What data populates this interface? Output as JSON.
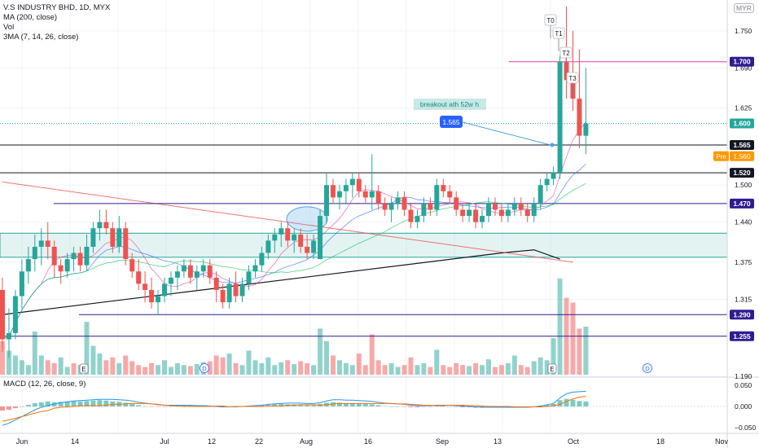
{
  "header": {
    "symbol_line": "V.S INDUSTRY BHD, 1D, MYX",
    "indicators": [
      "MA (200, close)",
      "Vol",
      "3MA (7, 14, 26, close)"
    ],
    "currency": "MYR"
  },
  "macd": {
    "label": "MACD (12, 26, close, 9)",
    "axis_ticks": [
      "0.050",
      "0.000",
      "−0.050"
    ]
  },
  "annotations": {
    "breakout_text": "breakout ath 52w h",
    "callout_value": "1.565",
    "targets": [
      "T0",
      "T1",
      "T2",
      "T3"
    ],
    "earnings_markers": [
      "E",
      "E"
    ],
    "dividend_markers": [
      "D",
      "D"
    ]
  },
  "price_axis": {
    "ticks": [
      "1.750",
      "1.690",
      "1.625",
      "1.500",
      "1.440",
      "1.375",
      "1.315",
      "1.190"
    ],
    "level_badges": [
      {
        "value": "1.700",
        "bg": "#311b92",
        "fg": "#ffffff"
      },
      {
        "value": "1.600",
        "bg": "#26a69a",
        "fg": "#ffffff"
      },
      {
        "value": "1.565",
        "bg": "#131722",
        "fg": "#ffffff"
      },
      {
        "value": "1.520",
        "bg": "#131722",
        "fg": "#ffffff"
      },
      {
        "value": "1.470",
        "bg": "#311b92",
        "fg": "#ffffff"
      },
      {
        "value": "1.290",
        "bg": "#311b92",
        "fg": "#ffffff"
      },
      {
        "value": "1.255",
        "bg": "#311b92",
        "fg": "#ffffff"
      }
    ],
    "pre_label": "Pre",
    "pre_value": "1.560"
  },
  "time_axis": {
    "ticks": [
      "Jun",
      "14",
      "Jul",
      "12",
      "22",
      "Aug",
      "16",
      "Sep",
      "13",
      "Oct",
      "18",
      "Nov"
    ]
  },
  "colors": {
    "up": "#26a69a",
    "down": "#ef5350",
    "purple": "#311b92",
    "black": "#131722",
    "pink": "#e91e63",
    "zone": "#26a69a"
  },
  "chart_data": {
    "type": "candlestick",
    "title": "V.S INDUSTRY BHD, 1D, MYX",
    "x_range": [
      "Jun",
      "Nov"
    ],
    "ylim": [
      1.19,
      1.8
    ],
    "candles": [
      [
        1.33,
        1.35,
        1.23,
        1.25
      ],
      [
        1.25,
        1.3,
        1.22,
        1.26
      ],
      [
        1.26,
        1.33,
        1.25,
        1.32
      ],
      [
        1.32,
        1.38,
        1.3,
        1.36
      ],
      [
        1.36,
        1.4,
        1.34,
        1.38
      ],
      [
        1.38,
        1.42,
        1.36,
        1.4
      ],
      [
        1.4,
        1.43,
        1.37,
        1.41
      ],
      [
        1.41,
        1.44,
        1.38,
        1.4
      ],
      [
        1.4,
        1.41,
        1.35,
        1.37
      ],
      [
        1.37,
        1.38,
        1.34,
        1.36
      ],
      [
        1.36,
        1.39,
        1.35,
        1.38
      ],
      [
        1.38,
        1.4,
        1.36,
        1.39
      ],
      [
        1.39,
        1.4,
        1.36,
        1.37
      ],
      [
        1.37,
        1.42,
        1.36,
        1.4
      ],
      [
        1.4,
        1.44,
        1.39,
        1.43
      ],
      [
        1.43,
        1.46,
        1.41,
        1.44
      ],
      [
        1.44,
        1.46,
        1.42,
        1.43
      ],
      [
        1.43,
        1.44,
        1.39,
        1.4
      ],
      [
        1.4,
        1.45,
        1.39,
        1.43
      ],
      [
        1.43,
        1.44,
        1.37,
        1.38
      ],
      [
        1.38,
        1.39,
        1.35,
        1.36
      ],
      [
        1.36,
        1.38,
        1.33,
        1.34
      ],
      [
        1.34,
        1.36,
        1.31,
        1.33
      ],
      [
        1.33,
        1.35,
        1.3,
        1.31
      ],
      [
        1.31,
        1.33,
        1.29,
        1.32
      ],
      [
        1.32,
        1.35,
        1.31,
        1.34
      ],
      [
        1.34,
        1.36,
        1.32,
        1.35
      ],
      [
        1.35,
        1.37,
        1.33,
        1.36
      ],
      [
        1.36,
        1.38,
        1.35,
        1.37
      ],
      [
        1.37,
        1.38,
        1.34,
        1.35
      ],
      [
        1.35,
        1.37,
        1.33,
        1.36
      ],
      [
        1.36,
        1.38,
        1.35,
        1.37
      ],
      [
        1.37,
        1.38,
        1.34,
        1.35
      ],
      [
        1.35,
        1.36,
        1.31,
        1.33
      ],
      [
        1.33,
        1.34,
        1.3,
        1.31
      ],
      [
        1.31,
        1.35,
        1.3,
        1.34
      ],
      [
        1.34,
        1.36,
        1.31,
        1.32
      ],
      [
        1.32,
        1.35,
        1.31,
        1.34
      ],
      [
        1.34,
        1.37,
        1.33,
        1.36
      ],
      [
        1.36,
        1.38,
        1.35,
        1.37
      ],
      [
        1.37,
        1.4,
        1.36,
        1.39
      ],
      [
        1.39,
        1.42,
        1.38,
        1.41
      ],
      [
        1.41,
        1.43,
        1.39,
        1.42
      ],
      [
        1.42,
        1.44,
        1.4,
        1.43
      ],
      [
        1.43,
        1.44,
        1.4,
        1.41
      ],
      [
        1.41,
        1.43,
        1.39,
        1.42
      ],
      [
        1.42,
        1.43,
        1.39,
        1.4
      ],
      [
        1.4,
        1.42,
        1.38,
        1.39
      ],
      [
        1.39,
        1.42,
        1.38,
        1.41
      ],
      [
        1.38,
        1.46,
        1.38,
        1.45
      ],
      [
        1.45,
        1.52,
        1.44,
        1.5
      ],
      [
        1.5,
        1.51,
        1.47,
        1.48
      ],
      [
        1.48,
        1.5,
        1.46,
        1.49
      ],
      [
        1.49,
        1.51,
        1.47,
        1.5
      ],
      [
        1.5,
        1.52,
        1.48,
        1.51
      ],
      [
        1.51,
        1.52,
        1.48,
        1.49
      ],
      [
        1.49,
        1.5,
        1.47,
        1.48
      ],
      [
        1.48,
        1.55,
        1.46,
        1.49
      ],
      [
        1.49,
        1.5,
        1.46,
        1.47
      ],
      [
        1.47,
        1.48,
        1.45,
        1.46
      ],
      [
        1.46,
        1.48,
        1.44,
        1.47
      ],
      [
        1.47,
        1.49,
        1.46,
        1.48
      ],
      [
        1.48,
        1.49,
        1.45,
        1.46
      ],
      [
        1.46,
        1.47,
        1.43,
        1.44
      ],
      [
        1.44,
        1.46,
        1.43,
        1.45
      ],
      [
        1.45,
        1.48,
        1.44,
        1.47
      ],
      [
        1.47,
        1.48,
        1.45,
        1.46
      ],
      [
        1.46,
        1.51,
        1.45,
        1.5
      ],
      [
        1.5,
        1.51,
        1.48,
        1.49
      ],
      [
        1.49,
        1.5,
        1.47,
        1.48
      ],
      [
        1.48,
        1.49,
        1.45,
        1.46
      ],
      [
        1.46,
        1.47,
        1.44,
        1.45
      ],
      [
        1.45,
        1.47,
        1.44,
        1.46
      ],
      [
        1.46,
        1.47,
        1.43,
        1.44
      ],
      [
        1.44,
        1.46,
        1.43,
        1.45
      ],
      [
        1.45,
        1.48,
        1.44,
        1.47
      ],
      [
        1.47,
        1.48,
        1.45,
        1.46
      ],
      [
        1.46,
        1.47,
        1.44,
        1.45
      ],
      [
        1.45,
        1.47,
        1.44,
        1.46
      ],
      [
        1.46,
        1.48,
        1.45,
        1.47
      ],
      [
        1.47,
        1.48,
        1.45,
        1.46
      ],
      [
        1.46,
        1.47,
        1.44,
        1.45
      ],
      [
        1.45,
        1.48,
        1.44,
        1.47
      ],
      [
        1.47,
        1.51,
        1.46,
        1.5
      ],
      [
        1.5,
        1.52,
        1.49,
        1.51
      ],
      [
        1.51,
        1.53,
        1.5,
        1.52
      ],
      [
        1.52,
        1.71,
        1.51,
        1.7
      ],
      [
        1.7,
        1.79,
        1.64,
        1.67
      ],
      [
        1.67,
        1.75,
        1.62,
        1.64
      ],
      [
        1.64,
        1.72,
        1.56,
        1.58
      ],
      [
        1.58,
        1.69,
        1.55,
        1.6
      ]
    ],
    "volume": [
      {
        "v": 0.35,
        "up": false
      },
      {
        "v": 0.25,
        "up": true
      },
      {
        "v": 0.2,
        "up": true
      },
      {
        "v": 0.15,
        "up": true
      },
      {
        "v": 0.1,
        "up": true
      },
      {
        "v": 0.45,
        "up": true
      },
      {
        "v": 0.2,
        "up": true
      },
      {
        "v": 0.15,
        "up": false
      },
      {
        "v": 0.12,
        "up": false
      },
      {
        "v": 0.18,
        "up": true
      },
      {
        "v": 0.08,
        "up": true
      },
      {
        "v": 0.12,
        "up": false
      },
      {
        "v": 0.1,
        "up": true
      },
      {
        "v": 0.55,
        "up": true
      },
      {
        "v": 0.3,
        "up": true
      },
      {
        "v": 0.22,
        "up": true
      },
      {
        "v": 0.15,
        "up": false
      },
      {
        "v": 0.18,
        "up": false
      },
      {
        "v": 0.12,
        "up": true
      },
      {
        "v": 0.2,
        "up": false
      },
      {
        "v": 0.14,
        "up": false
      },
      {
        "v": 0.1,
        "up": false
      },
      {
        "v": 0.08,
        "up": false
      },
      {
        "v": 0.12,
        "up": false
      },
      {
        "v": 0.1,
        "up": true
      },
      {
        "v": 0.15,
        "up": true
      },
      {
        "v": 0.08,
        "up": true
      },
      {
        "v": 0.12,
        "up": true
      },
      {
        "v": 0.1,
        "up": true
      },
      {
        "v": 0.09,
        "up": false
      },
      {
        "v": 0.11,
        "up": true
      },
      {
        "v": 0.13,
        "up": true
      },
      {
        "v": 0.14,
        "up": false
      },
      {
        "v": 0.2,
        "up": false
      },
      {
        "v": 0.18,
        "up": false
      },
      {
        "v": 0.22,
        "up": true
      },
      {
        "v": 0.12,
        "up": false
      },
      {
        "v": 0.1,
        "up": true
      },
      {
        "v": 0.25,
        "up": true
      },
      {
        "v": 0.15,
        "up": true
      },
      {
        "v": 0.12,
        "up": true
      },
      {
        "v": 0.18,
        "up": true
      },
      {
        "v": 0.1,
        "up": true
      },
      {
        "v": 0.13,
        "up": true
      },
      {
        "v": 0.15,
        "up": false
      },
      {
        "v": 0.11,
        "up": true
      },
      {
        "v": 0.14,
        "up": false
      },
      {
        "v": 0.12,
        "up": false
      },
      {
        "v": 0.1,
        "up": true
      },
      {
        "v": 0.48,
        "up": true
      },
      {
        "v": 0.35,
        "up": true
      },
      {
        "v": 0.2,
        "up": false
      },
      {
        "v": 0.15,
        "up": true
      },
      {
        "v": 0.12,
        "up": true
      },
      {
        "v": 0.1,
        "up": true
      },
      {
        "v": 0.22,
        "up": false
      },
      {
        "v": 0.1,
        "up": false
      },
      {
        "v": 0.42,
        "up": false
      },
      {
        "v": 0.15,
        "up": false
      },
      {
        "v": 0.1,
        "up": false
      },
      {
        "v": 0.12,
        "up": true
      },
      {
        "v": 0.08,
        "up": true
      },
      {
        "v": 0.1,
        "up": false
      },
      {
        "v": 0.18,
        "up": false
      },
      {
        "v": 0.1,
        "up": true
      },
      {
        "v": 0.12,
        "up": true
      },
      {
        "v": 0.08,
        "up": false
      },
      {
        "v": 0.26,
        "up": true
      },
      {
        "v": 0.1,
        "up": false
      },
      {
        "v": 0.08,
        "up": false
      },
      {
        "v": 0.12,
        "up": false
      },
      {
        "v": 0.1,
        "up": false
      },
      {
        "v": 0.09,
        "up": true
      },
      {
        "v": 0.12,
        "up": false
      },
      {
        "v": 0.1,
        "up": true
      },
      {
        "v": 0.16,
        "up": true
      },
      {
        "v": 0.08,
        "up": false
      },
      {
        "v": 0.1,
        "up": false
      },
      {
        "v": 0.12,
        "up": true
      },
      {
        "v": 0.2,
        "up": true
      },
      {
        "v": 0.1,
        "up": false
      },
      {
        "v": 0.08,
        "up": false
      },
      {
        "v": 0.14,
        "up": true
      },
      {
        "v": 0.18,
        "up": true
      },
      {
        "v": 0.15,
        "up": true
      },
      {
        "v": 0.38,
        "up": true
      },
      {
        "v": 1.0,
        "up": true
      },
      {
        "v": 0.8,
        "up": false
      },
      {
        "v": 0.75,
        "up": false
      },
      {
        "v": 0.48,
        "up": false
      },
      {
        "v": 0.5,
        "up": true
      }
    ],
    "ma200": [
      [
        0,
        1.29
      ],
      [
        77,
        1.39
      ],
      [
        82,
        1.395
      ],
      [
        86,
        1.38
      ]
    ],
    "trendline": [
      [
        0,
        1.505
      ],
      [
        88,
        1.375
      ]
    ],
    "horizontal_levels": [
      1.7,
      1.6,
      1.565,
      1.52,
      1.47,
      1.29,
      1.255
    ],
    "support_zone": [
      1.383,
      1.422
    ],
    "macd_ylim": [
      -0.06,
      0.06
    ],
    "macd_hist": [
      -0.01,
      -0.008,
      -0.004,
      0.0,
      0.004,
      0.008,
      0.01,
      0.012,
      0.01,
      0.011,
      0.012,
      0.013,
      0.012,
      0.013,
      0.014,
      0.015,
      0.014,
      0.012,
      0.011,
      0.009,
      0.006,
      0.003,
      0.001,
      0.0,
      -0.001,
      0.0,
      0.001,
      0.002,
      0.003,
      0.003,
      0.002,
      0.002,
      0.001,
      -0.001,
      -0.002,
      0.0,
      -0.001,
      0.0,
      0.001,
      0.002,
      0.003,
      0.004,
      0.005,
      0.006,
      0.005,
      0.005,
      0.004,
      0.003,
      0.003,
      0.006,
      0.009,
      0.01,
      0.009,
      0.008,
      0.008,
      0.007,
      0.006,
      0.005,
      0.003,
      0.001,
      0.0,
      0.0,
      -0.001,
      -0.002,
      -0.002,
      -0.001,
      -0.001,
      0.001,
      0.001,
      0.0,
      -0.001,
      -0.002,
      -0.002,
      -0.003,
      -0.003,
      -0.002,
      -0.002,
      -0.002,
      -0.002,
      -0.001,
      -0.001,
      -0.001,
      0.0,
      0.002,
      0.004,
      0.006,
      0.015,
      0.018,
      0.016,
      0.013,
      0.012
    ],
    "macd_line": [
      -0.045,
      -0.04,
      -0.032,
      -0.024,
      -0.016,
      -0.008,
      -0.002,
      0.002,
      0.006,
      0.009,
      0.011,
      0.013,
      0.014,
      0.015,
      0.016,
      0.017,
      0.017,
      0.017,
      0.016,
      0.015,
      0.013,
      0.01,
      0.008,
      0.006,
      0.004,
      0.003,
      0.003,
      0.003,
      0.003,
      0.003,
      0.002,
      0.002,
      0.001,
      0.0,
      -0.001,
      -0.001,
      -0.001,
      0.0,
      0.001,
      0.002,
      0.003,
      0.005,
      0.006,
      0.007,
      0.008,
      0.008,
      0.008,
      0.007,
      0.007,
      0.009,
      0.013,
      0.016,
      0.016,
      0.015,
      0.015,
      0.014,
      0.013,
      0.012,
      0.01,
      0.008,
      0.007,
      0.006,
      0.005,
      0.003,
      0.002,
      0.002,
      0.002,
      0.003,
      0.003,
      0.003,
      0.002,
      0.001,
      0.0,
      -0.001,
      -0.002,
      -0.002,
      -0.002,
      -0.002,
      -0.002,
      -0.002,
      -0.002,
      -0.002,
      -0.001,
      0.001,
      0.004,
      0.007,
      0.02,
      0.03,
      0.034,
      0.035,
      0.036
    ],
    "signal_line": [
      -0.035,
      -0.032,
      -0.028,
      -0.024,
      -0.02,
      -0.016,
      -0.012,
      -0.01,
      -0.004,
      -0.002,
      -0.001,
      0.0,
      0.002,
      0.002,
      0.002,
      0.002,
      0.003,
      0.005,
      0.005,
      0.006,
      0.007,
      0.007,
      0.007,
      0.006,
      0.005,
      0.003,
      0.002,
      0.001,
      0.0,
      0.0,
      0.0,
      0.0,
      0.0,
      0.001,
      0.001,
      -0.001,
      0.0,
      0.0,
      0.0,
      0.0,
      0.0,
      0.001,
      0.001,
      0.001,
      0.003,
      0.003,
      0.004,
      0.004,
      0.004,
      0.003,
      0.004,
      0.006,
      0.007,
      0.007,
      0.007,
      0.007,
      0.007,
      0.007,
      0.007,
      0.007,
      0.007,
      0.006,
      0.006,
      0.005,
      0.004,
      0.003,
      0.003,
      0.002,
      0.002,
      0.003,
      0.003,
      0.003,
      0.002,
      0.002,
      0.001,
      0.0,
      0.0,
      0.0,
      0.0,
      -0.001,
      -0.001,
      -0.001,
      -0.001,
      -0.001,
      0.0,
      0.001,
      0.005,
      0.012,
      0.018,
      0.022,
      0.024
    ]
  }
}
